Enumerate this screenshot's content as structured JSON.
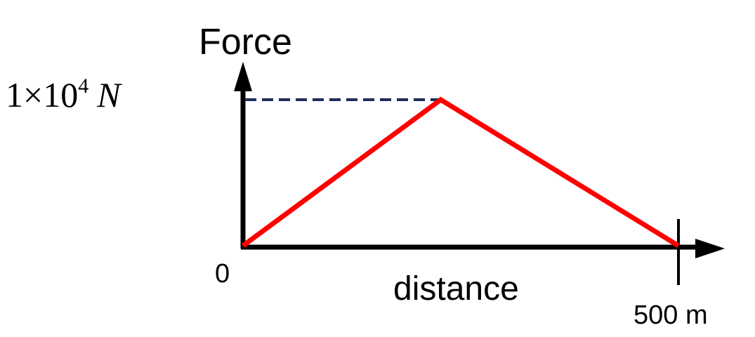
{
  "chart_data": {
    "type": "line",
    "ylabel": "Force",
    "xlabel": "distance",
    "origin_label": "0",
    "x_end_label": "500 m",
    "y_peak_label": {
      "mantissa": "1",
      "times": "×",
      "base": "10",
      "exponent": "4",
      "unit": "N"
    },
    "xlim": [
      0,
      500
    ],
    "ylim": [
      0,
      10000
    ],
    "series": [
      {
        "x": [
          0,
          227,
          500
        ],
        "y": [
          0,
          10000,
          0
        ]
      }
    ],
    "reference_line": {
      "y": 10000,
      "style": "dashed"
    },
    "colors": {
      "axis": "#000000",
      "series": "#ff0000",
      "reference": "#1f2d5a"
    }
  }
}
